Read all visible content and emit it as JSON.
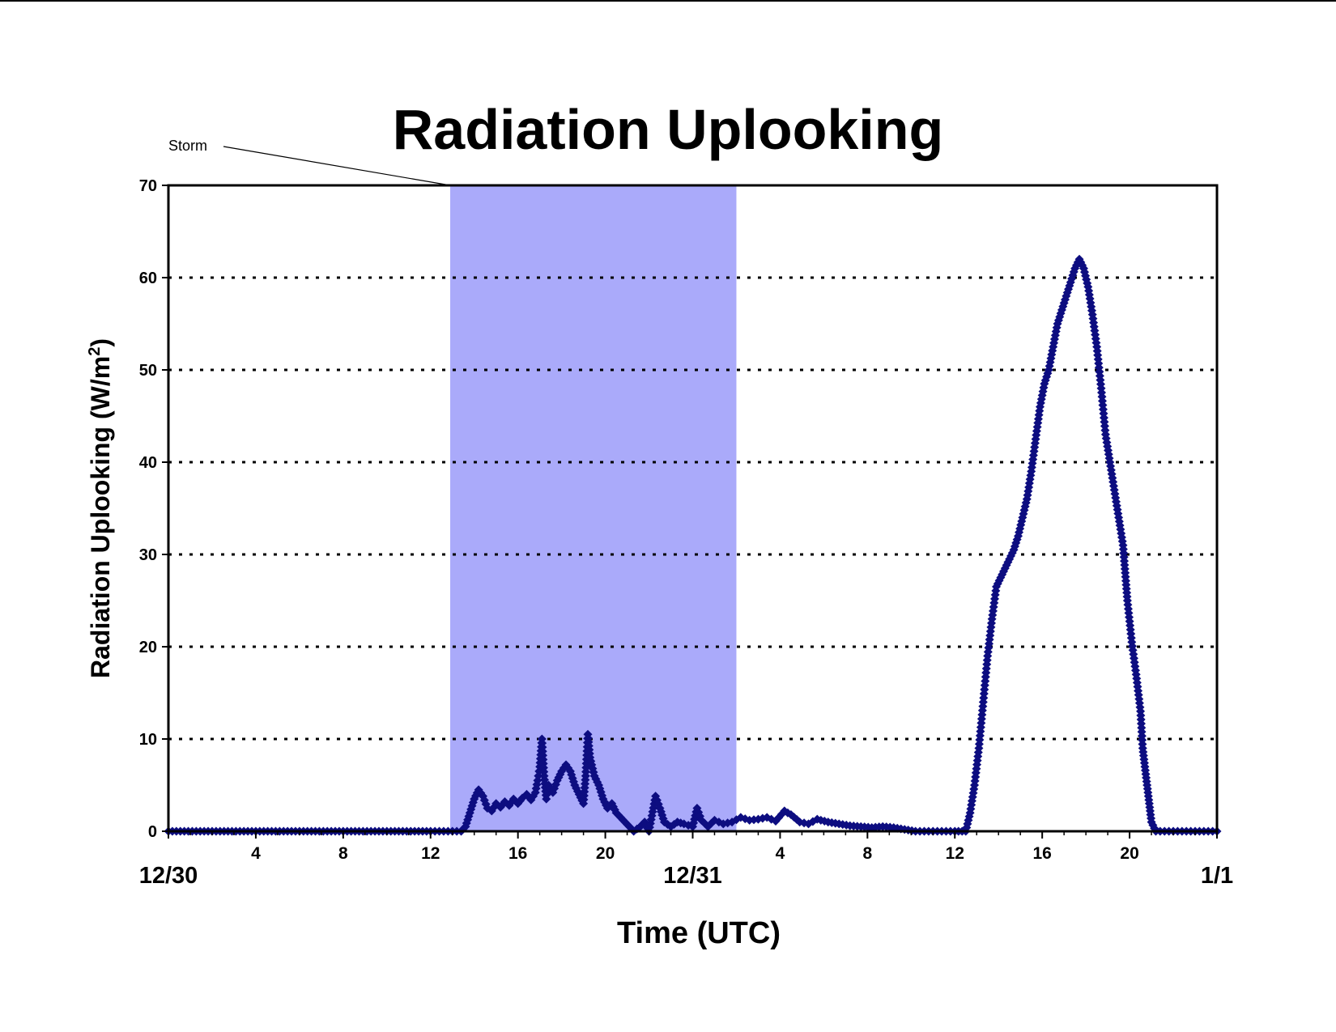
{
  "colors": {
    "marker": "#0d0d80",
    "storm_band": "#aaaafa",
    "frame": "#000000",
    "grid": "#000000"
  },
  "chart_data": {
    "type": "scatter",
    "title": "Radiation Uplooking",
    "xlabel": "Time (UTC)",
    "ylabel_main": "Radiation Uplooking (W/m",
    "ylabel_sup": "2",
    "ylabel_close": ")",
    "ylabel": "Radiation Uplooking (W/m2)",
    "ylim": [
      0,
      70
    ],
    "yticks": [
      0,
      10,
      20,
      30,
      40,
      50,
      60,
      70
    ],
    "grid": "dotted horizontal at each major y tick",
    "x_unit": "hours since 12/30 00 UTC",
    "xlim": [
      0,
      48
    ],
    "hour_ticks": [
      {
        "hour": 4,
        "label": "4"
      },
      {
        "hour": 8,
        "label": "8"
      },
      {
        "hour": 12,
        "label": "12"
      },
      {
        "hour": 16,
        "label": "16"
      },
      {
        "hour": 20,
        "label": "20"
      },
      {
        "hour": 28,
        "label": "4"
      },
      {
        "hour": 32,
        "label": "8"
      },
      {
        "hour": 36,
        "label": "12"
      },
      {
        "hour": 40,
        "label": "16"
      },
      {
        "hour": 44,
        "label": "20"
      }
    ],
    "date_ticks": [
      {
        "hour": 0,
        "label": "12/30"
      },
      {
        "hour": 24,
        "label": "12/31"
      },
      {
        "hour": 48,
        "label": "1/1"
      }
    ],
    "annotation": {
      "label": "Storm",
      "start_hour": 12.9,
      "end_hour": 26
    },
    "series": [
      {
        "name": "",
        "points": [
          [
            0,
            0
          ],
          [
            2,
            0
          ],
          [
            4,
            0
          ],
          [
            6,
            0
          ],
          [
            8,
            0
          ],
          [
            10,
            0
          ],
          [
            12,
            0
          ],
          [
            13,
            0
          ],
          [
            13.4,
            0
          ],
          [
            13.6,
            0.5
          ],
          [
            13.8,
            2
          ],
          [
            14.0,
            3.5
          ],
          [
            14.2,
            4.5
          ],
          [
            14.4,
            3.8
          ],
          [
            14.6,
            2.5
          ],
          [
            14.8,
            2.2
          ],
          [
            15.0,
            3
          ],
          [
            15.2,
            2.6
          ],
          [
            15.4,
            3.2
          ],
          [
            15.6,
            2.8
          ],
          [
            15.8,
            3.5
          ],
          [
            16.0,
            3
          ],
          [
            16.2,
            3.6
          ],
          [
            16.4,
            4
          ],
          [
            16.6,
            3.4
          ],
          [
            16.8,
            4.2
          ],
          [
            16.9,
            5.5
          ],
          [
            17.0,
            7
          ],
          [
            17.1,
            10
          ],
          [
            17.2,
            6
          ],
          [
            17.3,
            3.5
          ],
          [
            17.4,
            5
          ],
          [
            17.6,
            4.2
          ],
          [
            17.8,
            5.5
          ],
          [
            18.0,
            6.5
          ],
          [
            18.2,
            7.2
          ],
          [
            18.4,
            6.5
          ],
          [
            18.6,
            5
          ],
          [
            18.8,
            4
          ],
          [
            19.0,
            3
          ],
          [
            19.1,
            6
          ],
          [
            19.2,
            10.5
          ],
          [
            19.3,
            8
          ],
          [
            19.5,
            6
          ],
          [
            19.7,
            5
          ],
          [
            19.9,
            3.5
          ],
          [
            20.1,
            2.5
          ],
          [
            20.3,
            3
          ],
          [
            20.5,
            2
          ],
          [
            20.7,
            1.5
          ],
          [
            20.9,
            1
          ],
          [
            21.1,
            0.5
          ],
          [
            21.3,
            0
          ],
          [
            21.6,
            0.5
          ],
          [
            21.8,
            1
          ],
          [
            22.0,
            0
          ],
          [
            22.3,
            3.8
          ],
          [
            22.5,
            2.5
          ],
          [
            22.7,
            1
          ],
          [
            23.0,
            0.5
          ],
          [
            23.3,
            1
          ],
          [
            23.6,
            0.8
          ],
          [
            24.0,
            0.5
          ],
          [
            24.2,
            2.5
          ],
          [
            24.4,
            1.2
          ],
          [
            24.7,
            0.5
          ],
          [
            25.0,
            1.2
          ],
          [
            25.4,
            0.8
          ],
          [
            25.8,
            1
          ],
          [
            26.2,
            1.5
          ],
          [
            26.6,
            1.2
          ],
          [
            27.0,
            1.3
          ],
          [
            27.4,
            1.5
          ],
          [
            27.8,
            1.1
          ],
          [
            28.2,
            2.2
          ],
          [
            28.5,
            1.8
          ],
          [
            28.9,
            1
          ],
          [
            29.3,
            0.8
          ],
          [
            29.7,
            1.3
          ],
          [
            30.2,
            1
          ],
          [
            30.7,
            0.8
          ],
          [
            31.2,
            0.6
          ],
          [
            31.7,
            0.5
          ],
          [
            32.2,
            0.4
          ],
          [
            32.7,
            0.5
          ],
          [
            33.2,
            0.4
          ],
          [
            33.7,
            0.2
          ],
          [
            34.2,
            0
          ],
          [
            35,
            0
          ],
          [
            36,
            0
          ],
          [
            36.5,
            0
          ],
          [
            36.7,
            2
          ],
          [
            36.9,
            5
          ],
          [
            37.1,
            9
          ],
          [
            37.3,
            14
          ],
          [
            37.5,
            19
          ],
          [
            37.7,
            23
          ],
          [
            37.9,
            26.5
          ],
          [
            38.1,
            27.5
          ],
          [
            38.3,
            28.5
          ],
          [
            38.5,
            29.5
          ],
          [
            38.7,
            30.5
          ],
          [
            38.9,
            32
          ],
          [
            39.1,
            34
          ],
          [
            39.3,
            36
          ],
          [
            39.5,
            39
          ],
          [
            39.7,
            42.5
          ],
          [
            39.9,
            46
          ],
          [
            40.1,
            48.5
          ],
          [
            40.3,
            50
          ],
          [
            40.5,
            52.5
          ],
          [
            40.7,
            55
          ],
          [
            40.9,
            56.5
          ],
          [
            41.1,
            58
          ],
          [
            41.3,
            59.5
          ],
          [
            41.5,
            61
          ],
          [
            41.7,
            62
          ],
          [
            41.9,
            61
          ],
          [
            42.1,
            59
          ],
          [
            42.3,
            56
          ],
          [
            42.5,
            52.5
          ],
          [
            42.7,
            48
          ],
          [
            42.9,
            43
          ],
          [
            43.1,
            40
          ],
          [
            43.3,
            37
          ],
          [
            43.5,
            34
          ],
          [
            43.7,
            31
          ],
          [
            43.9,
            25
          ],
          [
            44.1,
            20.5
          ],
          [
            44.3,
            17
          ],
          [
            44.5,
            13
          ],
          [
            44.6,
            9
          ],
          [
            44.7,
            7
          ],
          [
            44.8,
            5
          ],
          [
            44.9,
            3
          ],
          [
            45.0,
            1
          ],
          [
            45.2,
            0
          ],
          [
            46,
            0
          ],
          [
            47,
            0
          ],
          [
            48,
            0
          ]
        ]
      }
    ]
  }
}
